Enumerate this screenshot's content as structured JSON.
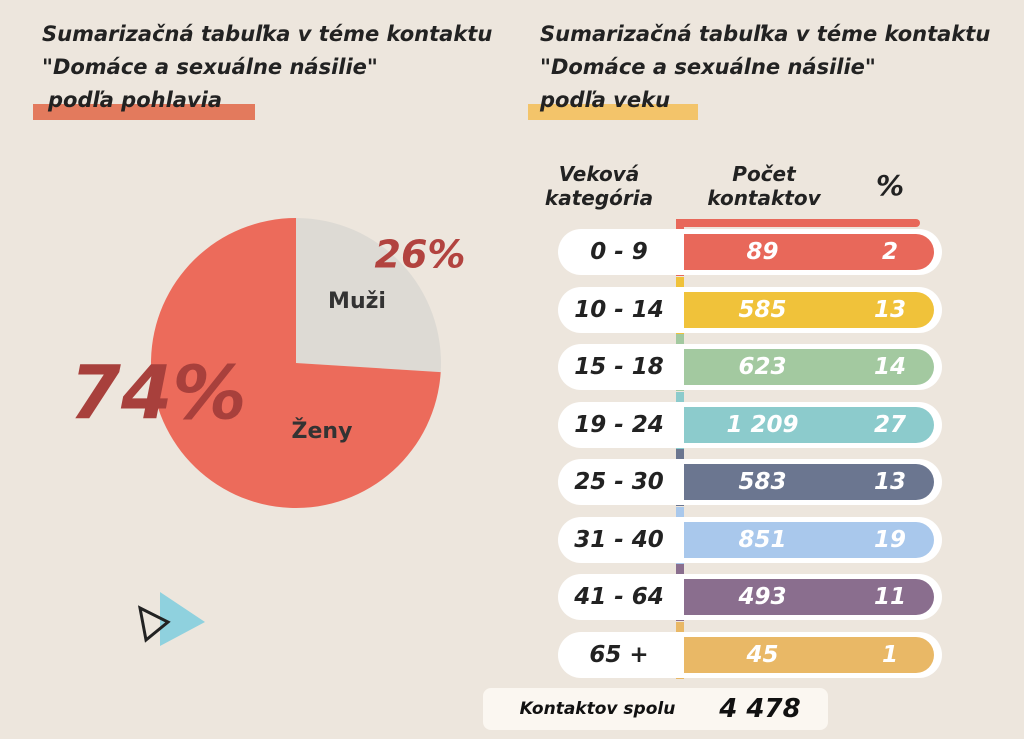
{
  "chart_data": {
    "type": "pie",
    "title": "Sumarizačná tabuľka v téme kontaktu \"Domáce a sexuálne násilie\"",
    "subtitle": "podľa pohlavia",
    "categories": [
      "Muži",
      "Ženy"
    ],
    "values": [
      26,
      74
    ],
    "value_labels": [
      "26%",
      "74%"
    ],
    "colors": [
      "#dddad4",
      "#ec6b5b"
    ]
  },
  "table": {
    "title": "Sumarizačná tabuľka v téme kontaktu \"Domáce a sexuálne násilie\"",
    "subtitle": "podľa veku",
    "header": [
      "Veková kategória",
      "Počet kontaktov",
      "%"
    ],
    "rows": [
      {
        "category": "0 - 9",
        "count": "89",
        "percent": "2",
        "color": "#e8685a"
      },
      {
        "category": "10 - 14",
        "count": "585",
        "percent": "13",
        "color": "#f0c23a"
      },
      {
        "category": "15 - 18",
        "count": "623",
        "percent": "14",
        "color": "#a3c9a0"
      },
      {
        "category": "19 - 24",
        "count": "1 209",
        "percent": "27",
        "color": "#8ccbcc"
      },
      {
        "category": "25 - 30",
        "count": "583",
        "percent": "13",
        "color": "#6b7690"
      },
      {
        "category": "31 - 40",
        "count": "851",
        "percent": "19",
        "color": "#a9c8ec"
      },
      {
        "category": "41 - 64",
        "count": "493",
        "percent": "11",
        "color": "#8a6e8e"
      },
      {
        "category": "65 +",
        "count": "45",
        "percent": "1",
        "color": "#e9b866"
      }
    ],
    "total_label": "Kontaktov spolu",
    "total": "4 478"
  }
}
